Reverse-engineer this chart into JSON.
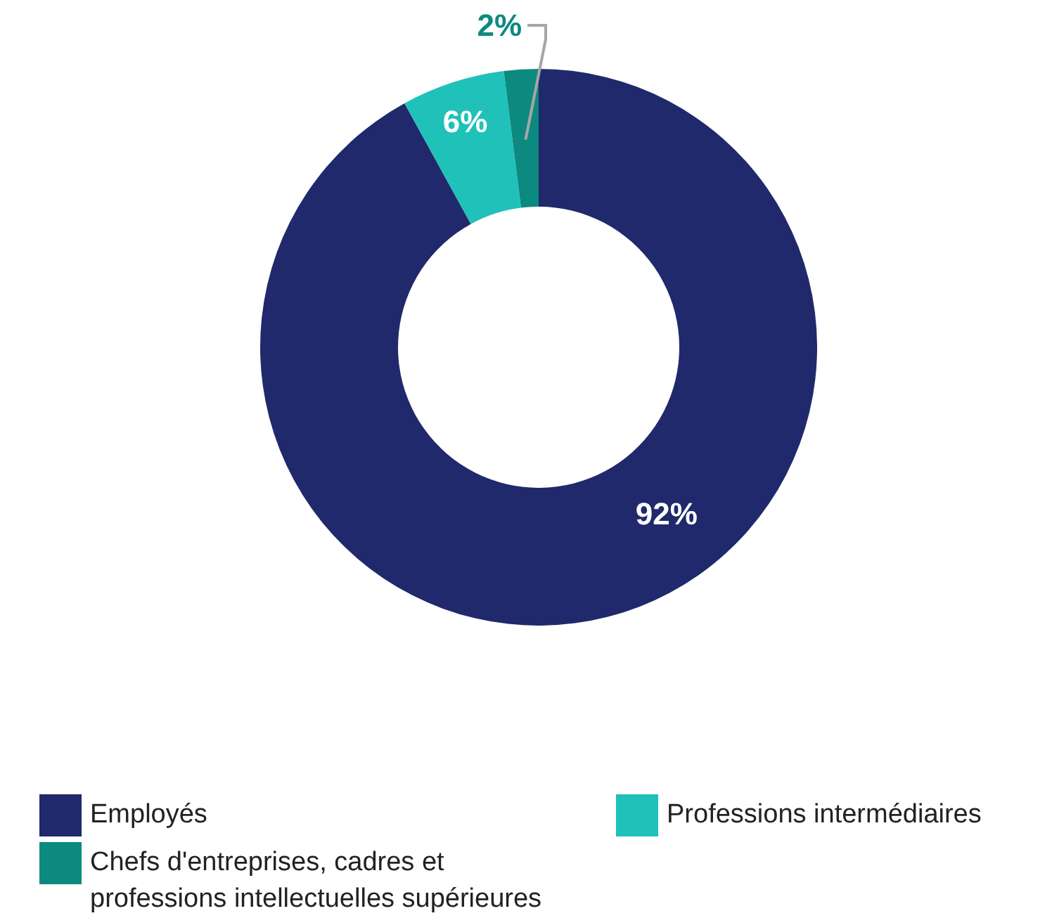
{
  "chart_data": {
    "type": "donut",
    "categories": [
      "Employés",
      "Professions intermédiaires",
      "Chefs d'entreprises, cadres et professions intellectuelles supérieures"
    ],
    "values": [
      92,
      6,
      2
    ],
    "colors": [
      "#20296b",
      "#1fc1b9",
      "#0d8a80"
    ],
    "value_labels": [
      "92%",
      "6%",
      "2%"
    ],
    "legend": "bottom"
  }
}
